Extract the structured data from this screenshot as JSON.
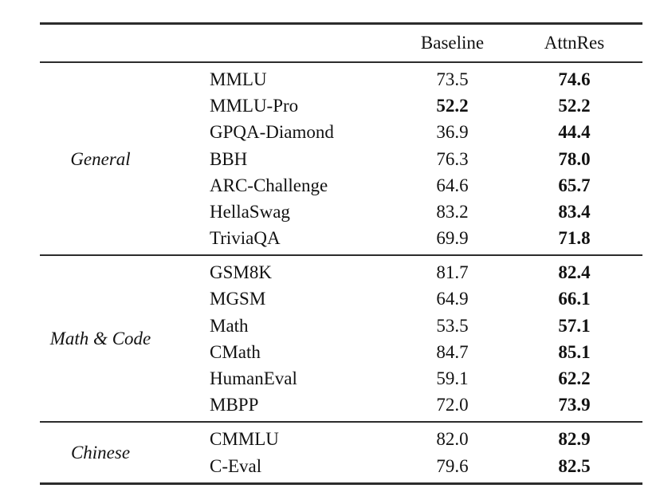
{
  "table": {
    "headers": {
      "baseline": "Baseline",
      "attnres": "AttnRes"
    },
    "rule_color": "#2c2c2c",
    "groups": [
      {
        "label": "General",
        "rows": [
          {
            "name": "MMLU",
            "baseline": "73.5",
            "baseline_bold": false,
            "attnres": "74.6",
            "attnres_bold": true
          },
          {
            "name": "MMLU-Pro",
            "baseline": "52.2",
            "baseline_bold": true,
            "attnres": "52.2",
            "attnres_bold": true
          },
          {
            "name": "GPQA-Diamond",
            "baseline": "36.9",
            "baseline_bold": false,
            "attnres": "44.4",
            "attnres_bold": true
          },
          {
            "name": "BBH",
            "baseline": "76.3",
            "baseline_bold": false,
            "attnres": "78.0",
            "attnres_bold": true
          },
          {
            "name": "ARC-Challenge",
            "baseline": "64.6",
            "baseline_bold": false,
            "attnres": "65.7",
            "attnres_bold": true
          },
          {
            "name": "HellaSwag",
            "baseline": "83.2",
            "baseline_bold": false,
            "attnres": "83.4",
            "attnres_bold": true
          },
          {
            "name": "TriviaQA",
            "baseline": "69.9",
            "baseline_bold": false,
            "attnres": "71.8",
            "attnres_bold": true
          }
        ]
      },
      {
        "label": "Math & Code",
        "rows": [
          {
            "name": "GSM8K",
            "baseline": "81.7",
            "baseline_bold": false,
            "attnres": "82.4",
            "attnres_bold": true
          },
          {
            "name": "MGSM",
            "baseline": "64.9",
            "baseline_bold": false,
            "attnres": "66.1",
            "attnres_bold": true
          },
          {
            "name": "Math",
            "baseline": "53.5",
            "baseline_bold": false,
            "attnres": "57.1",
            "attnres_bold": true
          },
          {
            "name": "CMath",
            "baseline": "84.7",
            "baseline_bold": false,
            "attnres": "85.1",
            "attnres_bold": true
          },
          {
            "name": "HumanEval",
            "baseline": "59.1",
            "baseline_bold": false,
            "attnres": "62.2",
            "attnres_bold": true
          },
          {
            "name": "MBPP",
            "baseline": "72.0",
            "baseline_bold": false,
            "attnres": "73.9",
            "attnres_bold": true
          }
        ]
      },
      {
        "label": "Chinese",
        "rows": [
          {
            "name": "CMMLU",
            "baseline": "82.0",
            "baseline_bold": false,
            "attnres": "82.9",
            "attnres_bold": true
          },
          {
            "name": "C-Eval",
            "baseline": "79.6",
            "baseline_bold": false,
            "attnres": "82.5",
            "attnres_bold": true
          }
        ]
      }
    ]
  }
}
